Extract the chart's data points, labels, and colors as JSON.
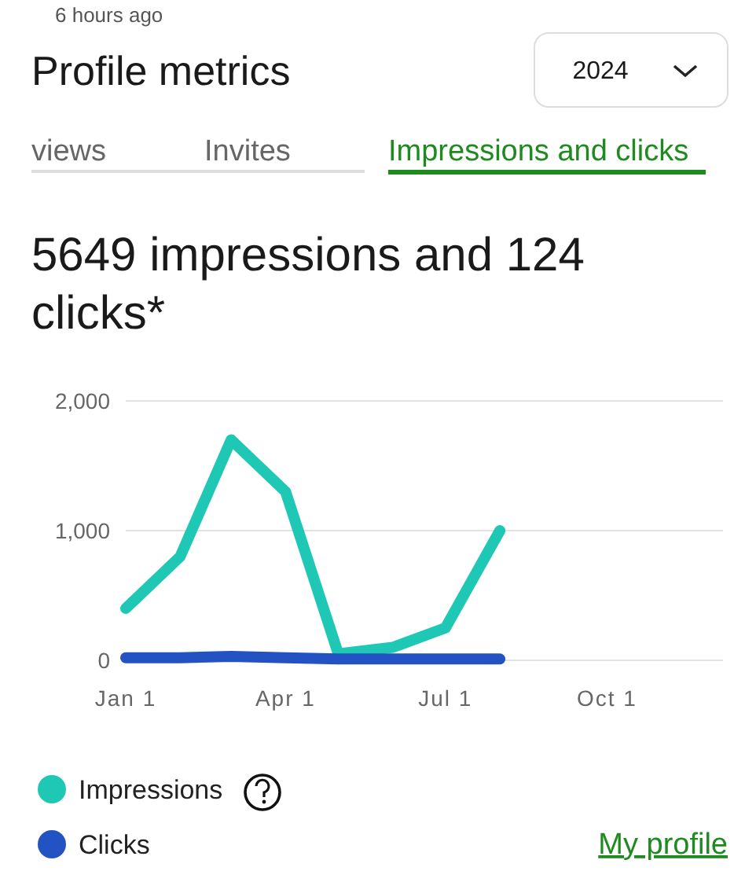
{
  "chart_data": {
    "type": "line",
    "title": "Profile metrics",
    "subtitle": "5649 impressions and 124 clicks*",
    "annotations": [
      "6 hours ago",
      "2024",
      "views",
      "Invites",
      "Impressions and clicks",
      "My profile"
    ],
    "x": [
      "2024-01-01",
      "2024-02-01",
      "2024-03-01",
      "2024-04-01",
      "2024-05-01",
      "2024-06-01",
      "2024-07-01",
      "2024-08-01"
    ],
    "series": [
      {
        "name": "Impressions",
        "color": "#1ec8b4",
        "values": [
          400,
          800,
          1700,
          1300,
          50,
          100,
          250,
          1000
        ]
      },
      {
        "name": "Clicks",
        "color": "#2352c2",
        "values": [
          20,
          20,
          30,
          20,
          10,
          10,
          10,
          10
        ]
      }
    ],
    "xlim": [
      "2024-01-01",
      "2024-12-06"
    ],
    "xticks": [
      {
        "value": "2024-01-01",
        "label": "Jan 1"
      },
      {
        "value": "2024-04-01",
        "label": "Apr 1"
      },
      {
        "value": "2024-07-01",
        "label": "Jul 1"
      },
      {
        "value": "2024-10-01",
        "label": "Oct 1"
      }
    ],
    "ylim": [
      0,
      2000
    ],
    "yticks": [
      {
        "value": 0,
        "label": "0"
      },
      {
        "value": 1000,
        "label": "1,000"
      },
      {
        "value": 2000,
        "label": "2,000"
      }
    ],
    "grid": "y",
    "legend": "bottom",
    "marker": "none",
    "line_style": "solid"
  }
}
